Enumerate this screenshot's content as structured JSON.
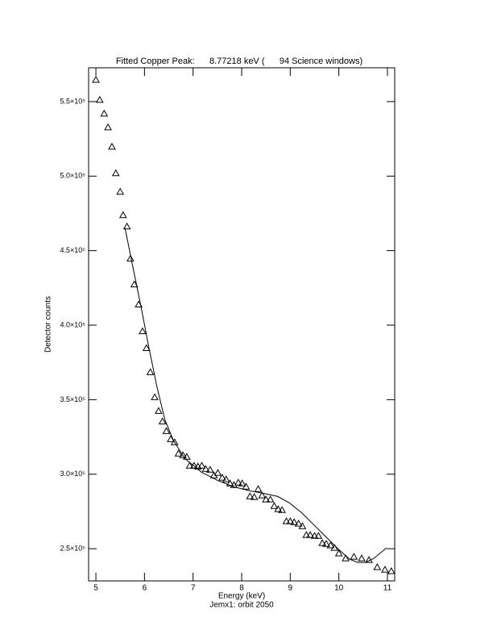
{
  "chart_data": {
    "type": "scatter",
    "title": "Fitted Copper Peak:      8.77218 keV (      94 Science windows)",
    "x_label": "Energy (keV)",
    "subtitle": "Jemx1: orbit 2050",
    "y_label": "Detector counts",
    "xlim": [
      4.85,
      11.15
    ],
    "ylim": [
      228400,
      572700
    ],
    "xticks": [
      5,
      6,
      7,
      8,
      9,
      10,
      11
    ],
    "yticks": [
      {
        "value": 250000,
        "label": "2.5×10⁵"
      },
      {
        "value": 300000,
        "label": "3.0×10⁵"
      },
      {
        "value": 350000,
        "label": "3.5×10⁵"
      },
      {
        "value": 400000,
        "label": "4.0×10⁵"
      },
      {
        "value": 450000,
        "label": "4.5×10⁵"
      },
      {
        "value": 500000,
        "label": "5.0×10⁵"
      },
      {
        "value": 550000,
        "label": "5.5×10⁵"
      }
    ],
    "series": [
      {
        "marker": "triangle",
        "color": "#000000",
        "x": [
          5.0,
          5.08,
          5.17,
          5.25,
          5.33,
          5.41,
          5.5,
          5.56,
          5.64,
          5.71,
          5.79,
          5.88,
          5.96,
          6.04,
          6.12,
          6.21,
          6.29,
          6.37,
          6.45,
          6.54,
          6.62,
          6.7,
          6.79,
          6.87,
          6.93,
          7.02,
          7.1,
          7.18,
          7.26,
          7.35,
          7.43,
          7.51,
          7.6,
          7.68,
          7.76,
          7.84,
          7.93,
          8.01,
          8.09,
          8.17,
          8.26,
          8.34,
          8.42,
          8.5,
          8.59,
          8.67,
          8.75,
          8.83,
          8.92,
          9.0,
          9.08,
          9.17,
          9.25,
          9.33,
          9.41,
          9.5,
          9.58,
          9.66,
          9.74,
          9.83,
          9.91,
          10.0,
          10.14,
          10.31,
          10.47,
          10.62,
          10.79,
          10.95,
          11.08
        ],
        "values": [
          564600,
          551100,
          541900,
          532700,
          519700,
          501900,
          489500,
          473800,
          466200,
          444600,
          427300,
          413800,
          395900,
          384600,
          368400,
          351600,
          342400,
          335400,
          328900,
          323500,
          321400,
          313800,
          312700,
          311600,
          305700,
          305700,
          305100,
          305700,
          303500,
          303000,
          299200,
          300800,
          297600,
          296500,
          293800,
          292700,
          294300,
          293800,
          291600,
          285100,
          284600,
          290000,
          285700,
          283000,
          283000,
          278600,
          276500,
          275900,
          268400,
          268400,
          267800,
          266800,
          265100,
          259200,
          259200,
          258600,
          258600,
          253800,
          253200,
          252200,
          250500,
          246800,
          243500,
          244600,
          243500,
          242400,
          237600,
          235900,
          234900
        ]
      },
      {
        "marker": "line",
        "color": "#000000",
        "x": [
          5.6,
          5.76,
          5.93,
          6.09,
          6.26,
          6.42,
          6.59,
          6.83,
          7.17,
          7.5,
          7.83,
          8.16,
          8.5,
          8.74,
          8.98,
          9.23,
          9.48,
          9.73,
          9.98,
          10.22,
          10.39,
          10.55,
          10.72,
          10.88,
          10.98
        ],
        "values": [
          465100,
          439200,
          412200,
          385100,
          358100,
          336500,
          323000,
          310500,
          301400,
          295900,
          291600,
          288900,
          286800,
          285100,
          280800,
          274300,
          266200,
          258100,
          250000,
          243000,
          240800,
          240800,
          243500,
          247800,
          250500
        ]
      }
    ]
  }
}
